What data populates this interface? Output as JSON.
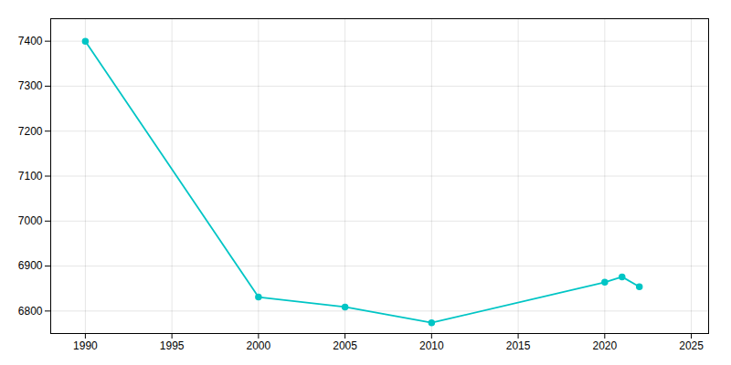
{
  "chart_data": {
    "type": "line",
    "x": [
      1990,
      2000,
      2005,
      2010,
      2020,
      2021,
      2022
    ],
    "values": [
      7400,
      6831,
      6809,
      6774,
      6864,
      6876,
      6854
    ],
    "color": "#00C5C5",
    "marker": "circle",
    "xlim": [
      1988,
      2026
    ],
    "xticks": [
      1990,
      1995,
      2000,
      2005,
      2010,
      2015,
      2020,
      2025
    ],
    "ylim": [
      6750,
      7450
    ],
    "yticks": [
      6800,
      6900,
      7000,
      7100,
      7200,
      7300,
      7400
    ],
    "grid": true
  }
}
